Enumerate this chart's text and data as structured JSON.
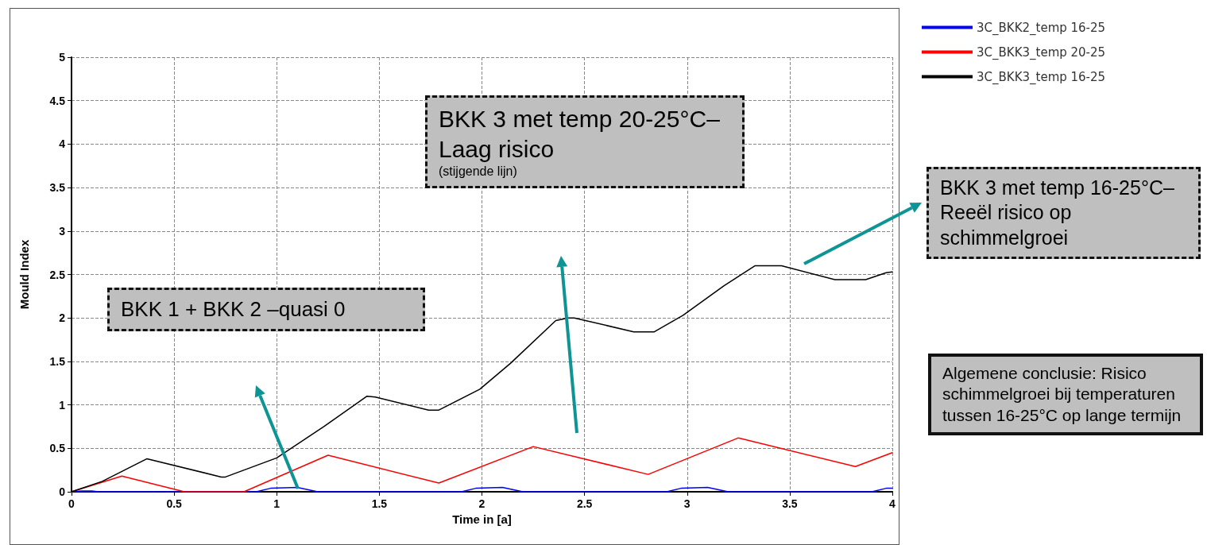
{
  "chart_data": {
    "type": "line",
    "xlabel": "Time in [a]",
    "ylabel": "Mould Index",
    "xlim": [
      0,
      4
    ],
    "xticks": [
      0,
      0.5,
      1,
      1.5,
      2,
      2.5,
      3,
      3.5,
      4
    ],
    "ylim": [
      0,
      5
    ],
    "yticks": [
      0,
      0.5,
      1,
      1.5,
      2,
      2.5,
      3,
      3.5,
      4,
      4.5,
      5
    ],
    "grid": true,
    "legend": "top right",
    "marker": "none",
    "line_style": "solid",
    "series": [
      {
        "name": "3C_BKK2_temp 16-25",
        "color": "#0000ff",
        "x": [
          0,
          0.05,
          0.1,
          0.13,
          0.9,
          0.97,
          1.1,
          1.2,
          1.9,
          1.97,
          2.1,
          2.2,
          2.9,
          2.97,
          3.1,
          3.2,
          3.9,
          3.97,
          4
        ],
        "values": [
          0,
          0.01,
          0.01,
          0,
          0,
          0.04,
          0.05,
          0,
          0,
          0.04,
          0.05,
          0,
          0,
          0.04,
          0.05,
          0,
          0,
          0.04,
          0.04
        ]
      },
      {
        "name": "3C_BKK3_temp 20-25",
        "color": "#ff0000",
        "x": [
          0,
          0.245,
          0.55,
          0.84,
          1.25,
          1.79,
          2.25,
          2.81,
          3.25,
          3.82,
          4
        ],
        "values": [
          0,
          0.18,
          0,
          0,
          0.42,
          0.1,
          0.52,
          0.2,
          0.62,
          0.29,
          0.45
        ]
      },
      {
        "name": "3C_BKK3_temp 16-25",
        "color": "#000000",
        "x": [
          0,
          0.15,
          0.368,
          0.73,
          0.75,
          1,
          1.23,
          1.44,
          1.48,
          1.74,
          1.79,
          1.99,
          2.14,
          2.36,
          2.42,
          2.45,
          2.74,
          2.84,
          2.98,
          3.18,
          3.33,
          3.46,
          3.72,
          3.87,
          3.97,
          4
        ],
        "values": [
          0,
          0.12,
          0.38,
          0.17,
          0.17,
          0.39,
          0.75,
          1.1,
          1.09,
          0.94,
          0.94,
          1.18,
          1.48,
          1.97,
          2,
          2,
          1.84,
          1.84,
          2.03,
          2.37,
          2.6,
          2.6,
          2.44,
          2.44,
          2.52,
          2.53
        ]
      }
    ],
    "annotations": [
      "BKK 1 + BKK 2 –quasi 0",
      "BKK 3 met temp 20-25°C–Laag risico",
      "(stijgende lijn)",
      "BKK 3 met temp 16-25°C–Reeël risico op schimmelgroei",
      "Algemene conclusie: Risico schimmelgroei bij temperaturen tussen 16-25°C op lange termijn"
    ]
  }
}
